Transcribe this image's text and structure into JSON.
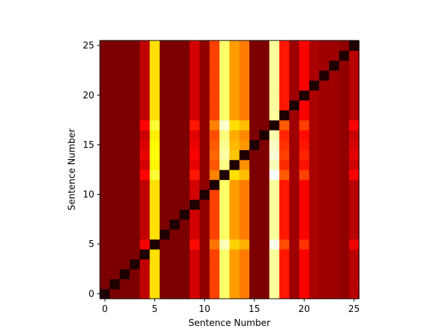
{
  "chart_data": {
    "type": "heatmap",
    "title": "",
    "xlabel": "Sentence Number",
    "ylabel": "Sentence Number",
    "xlim": [
      -0.5,
      25.5
    ],
    "ylim": [
      -0.5,
      25.5
    ],
    "x_ticks": [
      0,
      5,
      10,
      15,
      20,
      25
    ],
    "y_ticks": [
      0,
      5,
      10,
      15,
      20,
      25
    ],
    "colormap": "hot",
    "vmin": 0,
    "vmax": 1,
    "n": 26,
    "column_base_values": [
      0.17,
      0.17,
      0.17,
      0.17,
      0.27,
      0.7,
      0.17,
      0.17,
      0.17,
      0.3,
      0.2,
      0.46,
      0.85,
      0.6,
      0.55,
      0.17,
      0.17,
      0.9,
      0.4,
      0.22,
      0.36,
      0.24,
      0.22,
      0.22,
      0.2,
      0.26
    ],
    "row_offsets": [
      0,
      0,
      0,
      0,
      0,
      0.08,
      0,
      0,
      0,
      0,
      0,
      0,
      0.1,
      0.03,
      0.06,
      0.04,
      0.02,
      0.1,
      0,
      0,
      0,
      0,
      0,
      0,
      0,
      0
    ],
    "diagonal_value": 0.03,
    "grid": false,
    "legend": "none"
  },
  "axes": {
    "x_tick_labels": [
      "0",
      "5",
      "10",
      "15",
      "20",
      "25"
    ],
    "y_tick_labels": [
      "0",
      "5",
      "10",
      "15",
      "20",
      "25"
    ]
  }
}
